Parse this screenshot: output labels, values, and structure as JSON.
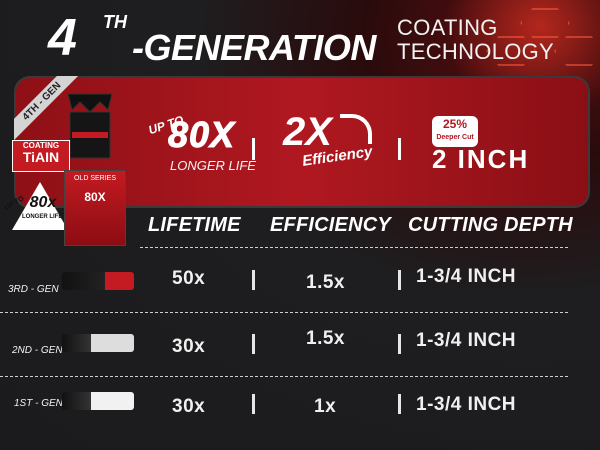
{
  "header": {
    "number": "4",
    "superscript": "TH",
    "generation": "-GENERATION",
    "coating_line1": "COATING",
    "coating_line2": "TECHNOLOGY"
  },
  "badge": {
    "ribbon": "4TH - GEN",
    "coating_small": "COATING",
    "coating_big": "TiAIN",
    "tri_upto": "UP TO",
    "tri_value": "80x",
    "tri_sub": "LONGER LIFE",
    "box_label": "OLD SERIES",
    "box_value": "80X"
  },
  "highlights": {
    "upto": "UP TO",
    "lifetime_value": "80X",
    "lifetime_sub": "LONGER LIFE",
    "efficiency_value": "2X",
    "efficiency_sub": "Efficiency",
    "deeper_value": "25%",
    "deeper_sub": "Deeper Cut",
    "depth_value": "2 INCH"
  },
  "table": {
    "headers": [
      "LIFETIME",
      "EFFICIENCY",
      "CUTTING DEPTH"
    ],
    "rows": [
      {
        "label": "3RD - GEN",
        "lifetime": "50x",
        "efficiency": "1.5x",
        "depth": "1-3/4 INCH"
      },
      {
        "label": "2ND - GEN",
        "lifetime": "30x",
        "efficiency": "1.5x",
        "depth": "1-3/4 INCH"
      },
      {
        "label": "1ST - GEN",
        "lifetime": "30x",
        "efficiency": "1x",
        "depth": "1-3/4 INCH"
      }
    ]
  },
  "colors": {
    "accent": "#b01820",
    "background": "#1d1d1f"
  }
}
